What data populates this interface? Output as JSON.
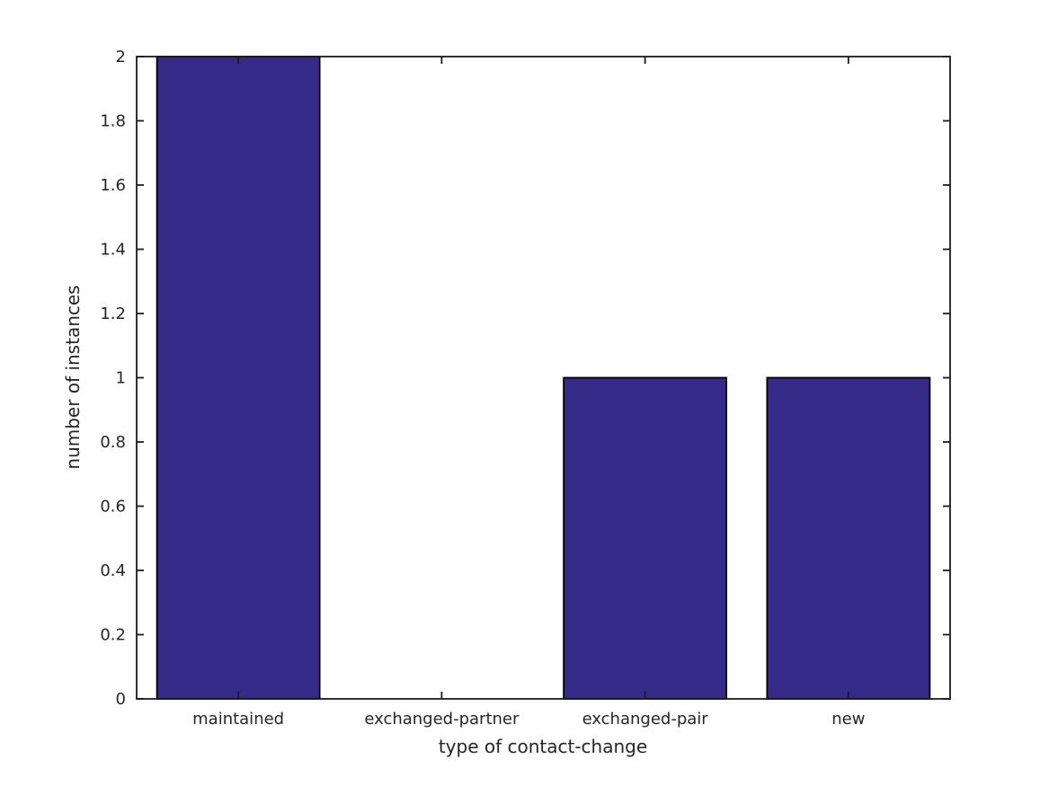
{
  "figure": {
    "background": "#ffffff"
  },
  "chart_data": {
    "type": "bar",
    "categories": [
      "maintained",
      "exchanged-partner",
      "exchanged-pair",
      "new"
    ],
    "values": [
      2,
      0,
      1,
      1
    ],
    "title": "",
    "xlabel": "type of contact-change",
    "ylabel": "number of instances",
    "ylim": [
      0,
      2
    ],
    "yticks": [
      0,
      0.2,
      0.4,
      0.6,
      0.8,
      1,
      1.2,
      1.4,
      1.6,
      1.8,
      2
    ],
    "ytick_labels": [
      "0",
      "0.2",
      "0.4",
      "0.6",
      "0.8",
      "1",
      "1.2",
      "1.4",
      "1.6",
      "1.8",
      "2"
    ],
    "bar_color": "#352a87",
    "bar_edge_color": "#000000",
    "axis_color": "#1c1c1c",
    "text_color": "#262626",
    "bar_width_fraction": 0.8,
    "grid": false,
    "legend": "none",
    "box": true,
    "ticks_inward": true
  }
}
